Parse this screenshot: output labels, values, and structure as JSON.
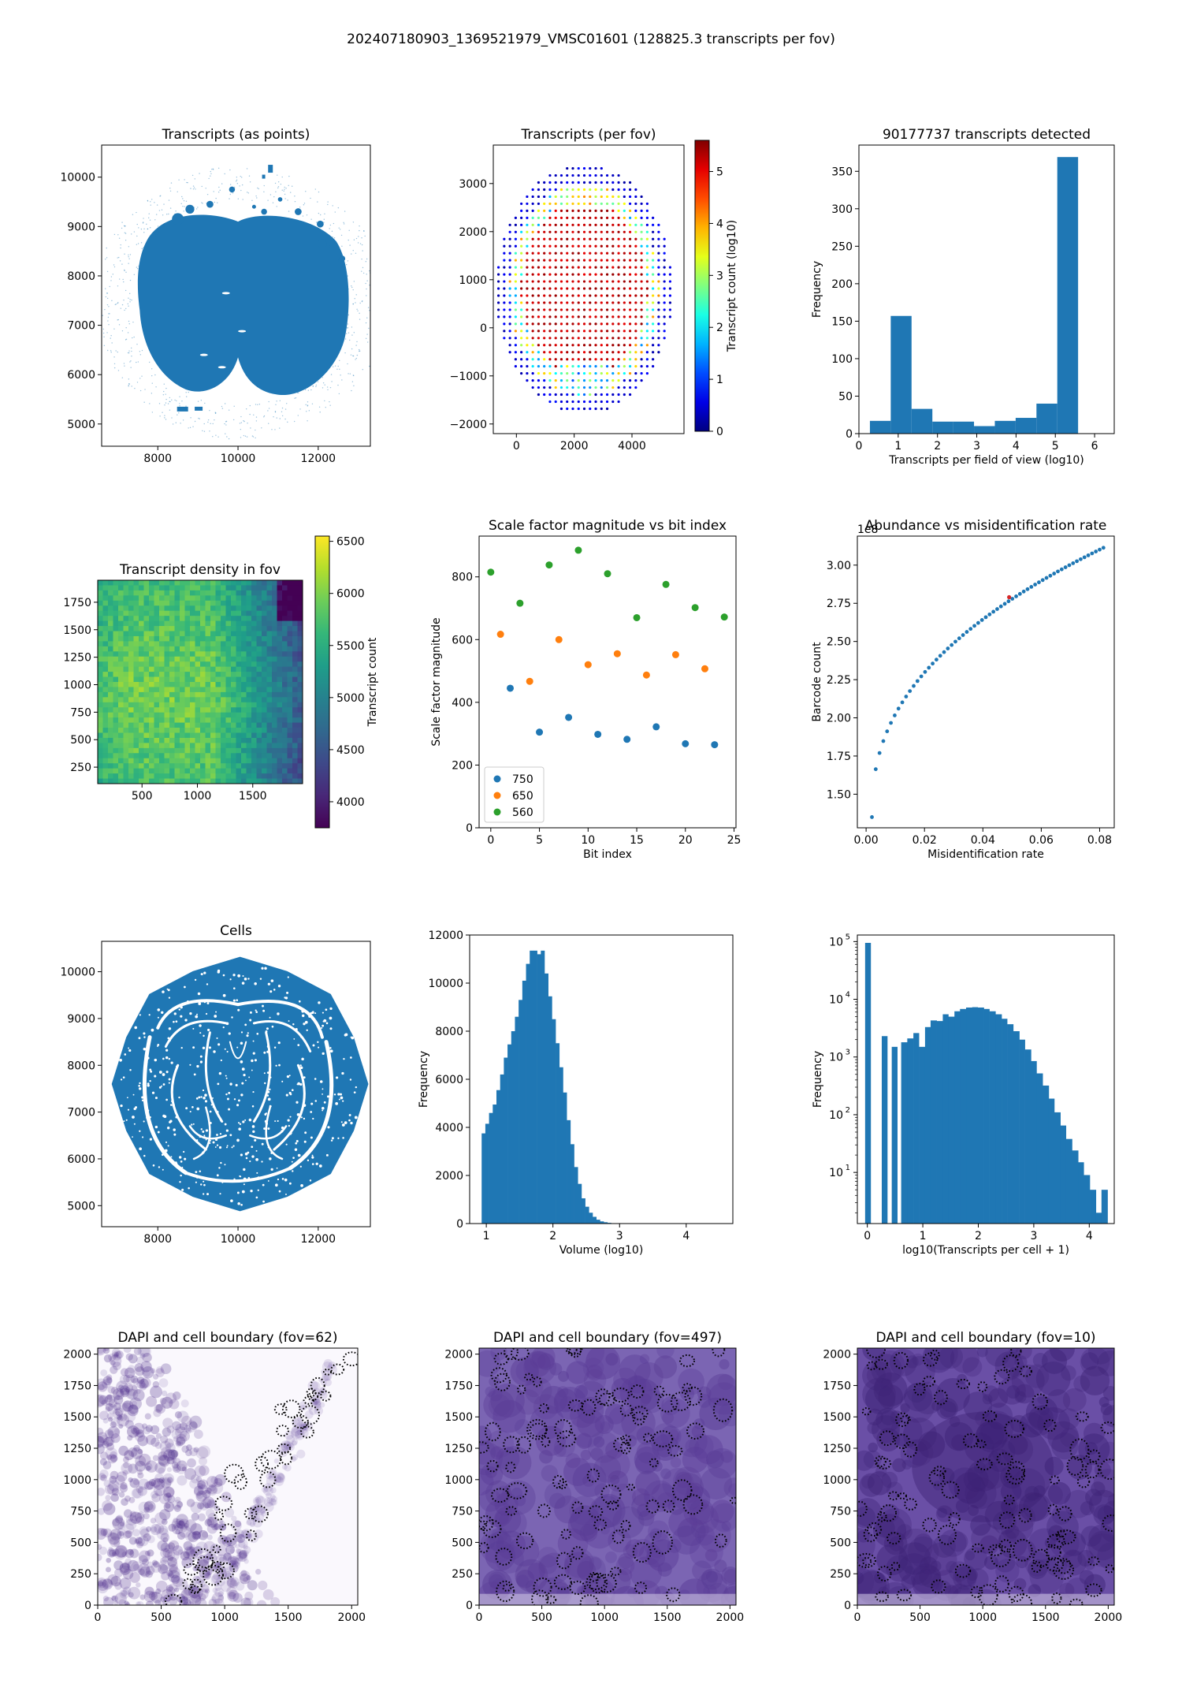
{
  "figure": {
    "suptitle": "202407180903_1369521979_VMSC01601 (128825.3 transcripts per fov)"
  },
  "panels": {
    "p1": {
      "title": "Transcripts (as points)",
      "xticks": [
        "8000",
        "10000",
        "12000"
      ],
      "yticks": [
        "5000",
        "6000",
        "7000",
        "8000",
        "9000",
        "10000"
      ]
    },
    "p2": {
      "title": "Transcripts (per fov)",
      "xticks": [
        "0",
        "2000",
        "4000"
      ],
      "yticks": [
        "−2000",
        "−1000",
        "0",
        "1000",
        "2000",
        "3000"
      ],
      "colorbar_label": "Transcript count (log10)",
      "colorbar_ticks": [
        "0",
        "1",
        "2",
        "3",
        "4",
        "5"
      ]
    },
    "p3": {
      "title": "90177737 transcripts detected",
      "xlabel": "Transcripts per field of view (log10)",
      "ylabel": "Frequency",
      "xticks": [
        "0",
        "1",
        "2",
        "3",
        "4",
        "5",
        "6"
      ],
      "yticks": [
        "0",
        "50",
        "100",
        "150",
        "200",
        "250",
        "300",
        "350"
      ]
    },
    "p4": {
      "title": "Transcript density in fov",
      "xticks": [
        "500",
        "1000",
        "1500"
      ],
      "yticks": [
        "250",
        "500",
        "750",
        "1000",
        "1250",
        "1500",
        "1750"
      ],
      "colorbar_label": "Transcript count",
      "colorbar_ticks": [
        "4000",
        "4500",
        "5000",
        "5500",
        "6000",
        "6500"
      ]
    },
    "p5": {
      "title": "Scale factor magnitude vs bit index",
      "xlabel": "Bit index",
      "ylabel": "Scale factor magnitude",
      "xticks": [
        "0",
        "5",
        "10",
        "15",
        "20",
        "25"
      ],
      "yticks": [
        "0",
        "200",
        "400",
        "600",
        "800"
      ]
    },
    "p6": {
      "title": "Abundance vs misidentification rate",
      "xlabel": "Misidentification rate",
      "ylabel": "Barcode count",
      "offset": "1e8",
      "xticks": [
        "0.00",
        "0.02",
        "0.04",
        "0.06",
        "0.08"
      ],
      "yticks": [
        "1.50",
        "1.75",
        "2.00",
        "2.25",
        "2.50",
        "2.75",
        "3.00"
      ]
    },
    "p7": {
      "title": "Cells",
      "xticks": [
        "8000",
        "10000",
        "12000"
      ],
      "yticks": [
        "5000",
        "6000",
        "7000",
        "8000",
        "9000",
        "10000"
      ]
    },
    "p8": {
      "xlabel": "Volume (log10)",
      "ylabel": "Frequency",
      "xticks": [
        "1",
        "2",
        "3",
        "4"
      ],
      "yticks": [
        "0",
        "2000",
        "4000",
        "6000",
        "8000",
        "10000",
        "12000"
      ]
    },
    "p9": {
      "xlabel": "log10(Transcripts per cell + 1)",
      "ylabel": "Frequency",
      "xticks": [
        "0",
        "1",
        "2",
        "3",
        "4"
      ],
      "yticks_base": [
        "10",
        "10",
        "10",
        "10",
        "10"
      ],
      "yticks_exp": [
        "1",
        "2",
        "3",
        "4",
        "5"
      ]
    },
    "p10": {
      "title": "DAPI and cell boundary (fov=62)",
      "xticks": [
        "0",
        "500",
        "1000",
        "1500",
        "2000"
      ],
      "yticks": [
        "0",
        "250",
        "500",
        "750",
        "1000",
        "1250",
        "1500",
        "1750",
        "2000"
      ]
    },
    "p11": {
      "title": "DAPI and cell boundary (fov=497)",
      "xticks": [
        "0",
        "500",
        "1000",
        "1500",
        "2000"
      ],
      "yticks": [
        "0",
        "250",
        "500",
        "750",
        "1000",
        "1250",
        "1500",
        "1750",
        "2000"
      ]
    },
    "p12": {
      "title": "DAPI and cell boundary (fov=10)",
      "xticks": [
        "0",
        "500",
        "1000",
        "1500",
        "2000"
      ],
      "yticks": [
        "0",
        "250",
        "500",
        "750",
        "1000",
        "1250",
        "1500",
        "1750",
        "2000"
      ]
    }
  },
  "colors": {
    "tab_blue": "#1f77b4",
    "tab_orange": "#ff7f0e",
    "tab_green": "#2ca02c",
    "dapi_purple": "#4b2a8a"
  },
  "chart_data": [
    {
      "type": "scatter",
      "title": "Transcripts (as points)",
      "xlim": [
        6600,
        13300
      ],
      "ylim": [
        4550,
        10650
      ],
      "grid": false
    },
    {
      "type": "scatter",
      "title": "Transcripts (per fov)",
      "xlim": [
        -800,
        5800
      ],
      "ylim": [
        -2200,
        3800
      ],
      "colorbar": {
        "label": "Transcript count (log10)",
        "range": [
          0,
          5.6
        ],
        "ticks": [
          0,
          1,
          2,
          3,
          4,
          5
        ]
      }
    },
    {
      "type": "bar",
      "title": "90177737 transcripts detected",
      "xlabel": "Transcripts per field of view (log10)",
      "ylabel": "Frequency",
      "xlim": [
        0,
        6.5
      ],
      "ylim": [
        0,
        385
      ],
      "bins": [
        {
          "x0": 0.28,
          "x1": 0.81,
          "value": 17
        },
        {
          "x0": 0.81,
          "x1": 1.34,
          "value": 157
        },
        {
          "x0": 1.34,
          "x1": 1.87,
          "value": 33
        },
        {
          "x0": 1.87,
          "x1": 2.4,
          "value": 16
        },
        {
          "x0": 2.4,
          "x1": 2.93,
          "value": 16
        },
        {
          "x0": 2.93,
          "x1": 3.46,
          "value": 10
        },
        {
          "x0": 3.46,
          "x1": 3.99,
          "value": 17
        },
        {
          "x0": 3.99,
          "x1": 4.52,
          "value": 21
        },
        {
          "x0": 4.52,
          "x1": 5.05,
          "value": 40
        },
        {
          "x0": 5.05,
          "x1": 5.58,
          "value": 369
        }
      ]
    },
    {
      "type": "heatmap",
      "title": "Transcript density in fov",
      "xlim": [
        100,
        1950
      ],
      "ylim": [
        100,
        1950
      ],
      "colorbar": {
        "label": "Transcript count",
        "range": [
          3750,
          6550
        ],
        "ticks": [
          4000,
          4500,
          5000,
          5500,
          6000,
          6500
        ]
      }
    },
    {
      "type": "scatter",
      "title": "Scale factor magnitude vs bit index",
      "xlabel": "Bit index",
      "ylabel": "Scale factor magnitude",
      "xlim": [
        -1.2,
        25.2
      ],
      "ylim": [
        0,
        930
      ],
      "legend": "lower-left",
      "series": [
        {
          "name": "750",
          "x": [
            2,
            5,
            8,
            11,
            14,
            17,
            20,
            23
          ],
          "y": [
            445,
            305,
            352,
            298,
            282,
            322,
            268,
            265
          ]
        },
        {
          "name": "650",
          "x": [
            1,
            4,
            7,
            10,
            13,
            16,
            19,
            22
          ],
          "y": [
            617,
            467,
            600,
            520,
            555,
            487,
            552,
            507
          ]
        },
        {
          "name": "560",
          "x": [
            0,
            3,
            6,
            9,
            12,
            15,
            18,
            21,
            24
          ],
          "y": [
            815,
            716,
            838,
            885,
            810,
            670,
            776,
            702,
            672
          ]
        }
      ]
    },
    {
      "type": "scatter",
      "title": "Abundance vs misidentification rate",
      "xlabel": "Misidentification rate",
      "ylabel": "Barcode count",
      "xlim": [
        -0.003,
        0.085
      ],
      "ylim": [
        1.28,
        3.19
      ],
      "y_offset": "1e8",
      "highlight": {
        "x": 0.049,
        "y": 2.79
      }
    },
    {
      "type": "scatter",
      "title": "Cells",
      "xlim": [
        6600,
        13300
      ],
      "ylim": [
        4550,
        10650
      ]
    },
    {
      "type": "bar",
      "xlabel": "Volume (log10)",
      "ylabel": "Frequency",
      "xlim": [
        0.75,
        4.7
      ],
      "ylim": [
        0,
        12000
      ],
      "bin_start": 0.93,
      "bin_width": 0.0555,
      "values": [
        3750,
        4150,
        4600,
        4950,
        5550,
        6200,
        6900,
        7450,
        8000,
        8600,
        9300,
        10100,
        10800,
        11350,
        11350,
        11200,
        11350,
        10400,
        9450,
        8500,
        7500,
        6500,
        5450,
        4300,
        3300,
        2350,
        1650,
        1050,
        700,
        450,
        280,
        160,
        90,
        55,
        30,
        15,
        8,
        4,
        2
      ]
    },
    {
      "type": "bar",
      "xlabel": "log10(Transcripts per cell + 1)",
      "ylabel": "Frequency",
      "y_scale": "log",
      "xlim": [
        -0.18,
        4.45
      ],
      "ylim": [
        1.3,
        130000
      ],
      "bins": [
        {
          "x0": -0.04,
          "x1": 0.06,
          "value": 95000
        },
        {
          "x0": 0.26,
          "x1": 0.36,
          "value": 2300
        },
        {
          "x0": 0.44,
          "x1": 0.54,
          "value": 1500
        },
        {
          "x0": 0.61,
          "x1": 0.72,
          "value": 1800
        },
        {
          "x0": 0.72,
          "x1": 0.83,
          "value": 2100
        },
        {
          "x0": 0.83,
          "x1": 0.93,
          "value": 2600
        },
        {
          "x0": 0.93,
          "x1": 1.04,
          "value": 1500
        },
        {
          "x0": 1.04,
          "x1": 1.14,
          "value": 3300
        },
        {
          "x0": 1.14,
          "x1": 1.25,
          "value": 4300
        },
        {
          "x0": 1.25,
          "x1": 1.36,
          "value": 4200
        },
        {
          "x0": 1.36,
          "x1": 1.46,
          "value": 5500
        },
        {
          "x0": 1.46,
          "x1": 1.57,
          "value": 5000
        },
        {
          "x0": 1.57,
          "x1": 1.67,
          "value": 6200
        },
        {
          "x0": 1.67,
          "x1": 1.78,
          "value": 6800
        },
        {
          "x0": 1.78,
          "x1": 1.89,
          "value": 7200
        },
        {
          "x0": 1.89,
          "x1": 1.99,
          "value": 7300
        },
        {
          "x0": 1.99,
          "x1": 2.1,
          "value": 7200
        },
        {
          "x0": 2.1,
          "x1": 2.2,
          "value": 6800
        },
        {
          "x0": 2.2,
          "x1": 2.31,
          "value": 6200
        },
        {
          "x0": 2.31,
          "x1": 2.42,
          "value": 5500
        },
        {
          "x0": 2.42,
          "x1": 2.52,
          "value": 4600
        },
        {
          "x0": 2.52,
          "x1": 2.63,
          "value": 3700
        },
        {
          "x0": 2.63,
          "x1": 2.74,
          "value": 2800
        },
        {
          "x0": 2.74,
          "x1": 2.84,
          "value": 2000
        },
        {
          "x0": 2.84,
          "x1": 2.95,
          "value": 1350
        },
        {
          "x0": 2.95,
          "x1": 3.05,
          "value": 850
        },
        {
          "x0": 3.05,
          "x1": 3.16,
          "value": 520
        },
        {
          "x0": 3.16,
          "x1": 3.27,
          "value": 320
        },
        {
          "x0": 3.27,
          "x1": 3.37,
          "value": 190
        },
        {
          "x0": 3.37,
          "x1": 3.48,
          "value": 110
        },
        {
          "x0": 3.48,
          "x1": 3.58,
          "value": 65
        },
        {
          "x0": 3.58,
          "x1": 3.69,
          "value": 38
        },
        {
          "x0": 3.69,
          "x1": 3.8,
          "value": 24
        },
        {
          "x0": 3.8,
          "x1": 3.9,
          "value": 15
        },
        {
          "x0": 3.9,
          "x1": 4.01,
          "value": 9
        },
        {
          "x0": 4.01,
          "x1": 4.12,
          "value": 5
        },
        {
          "x0": 4.12,
          "x1": 4.22,
          "value": 2
        },
        {
          "x0": 4.22,
          "x1": 4.33,
          "value": 5
        }
      ]
    },
    {
      "type": "heatmap",
      "title": "DAPI and cell boundary (fov=62)",
      "xlim": [
        0,
        2048
      ],
      "ylim": [
        0,
        2048
      ]
    },
    {
      "type": "heatmap",
      "title": "DAPI and cell boundary (fov=497)",
      "xlim": [
        0,
        2048
      ],
      "ylim": [
        0,
        2048
      ]
    },
    {
      "type": "heatmap",
      "title": "DAPI and cell boundary (fov=10)",
      "xlim": [
        0,
        2048
      ],
      "ylim": [
        0,
        2048
      ]
    }
  ]
}
